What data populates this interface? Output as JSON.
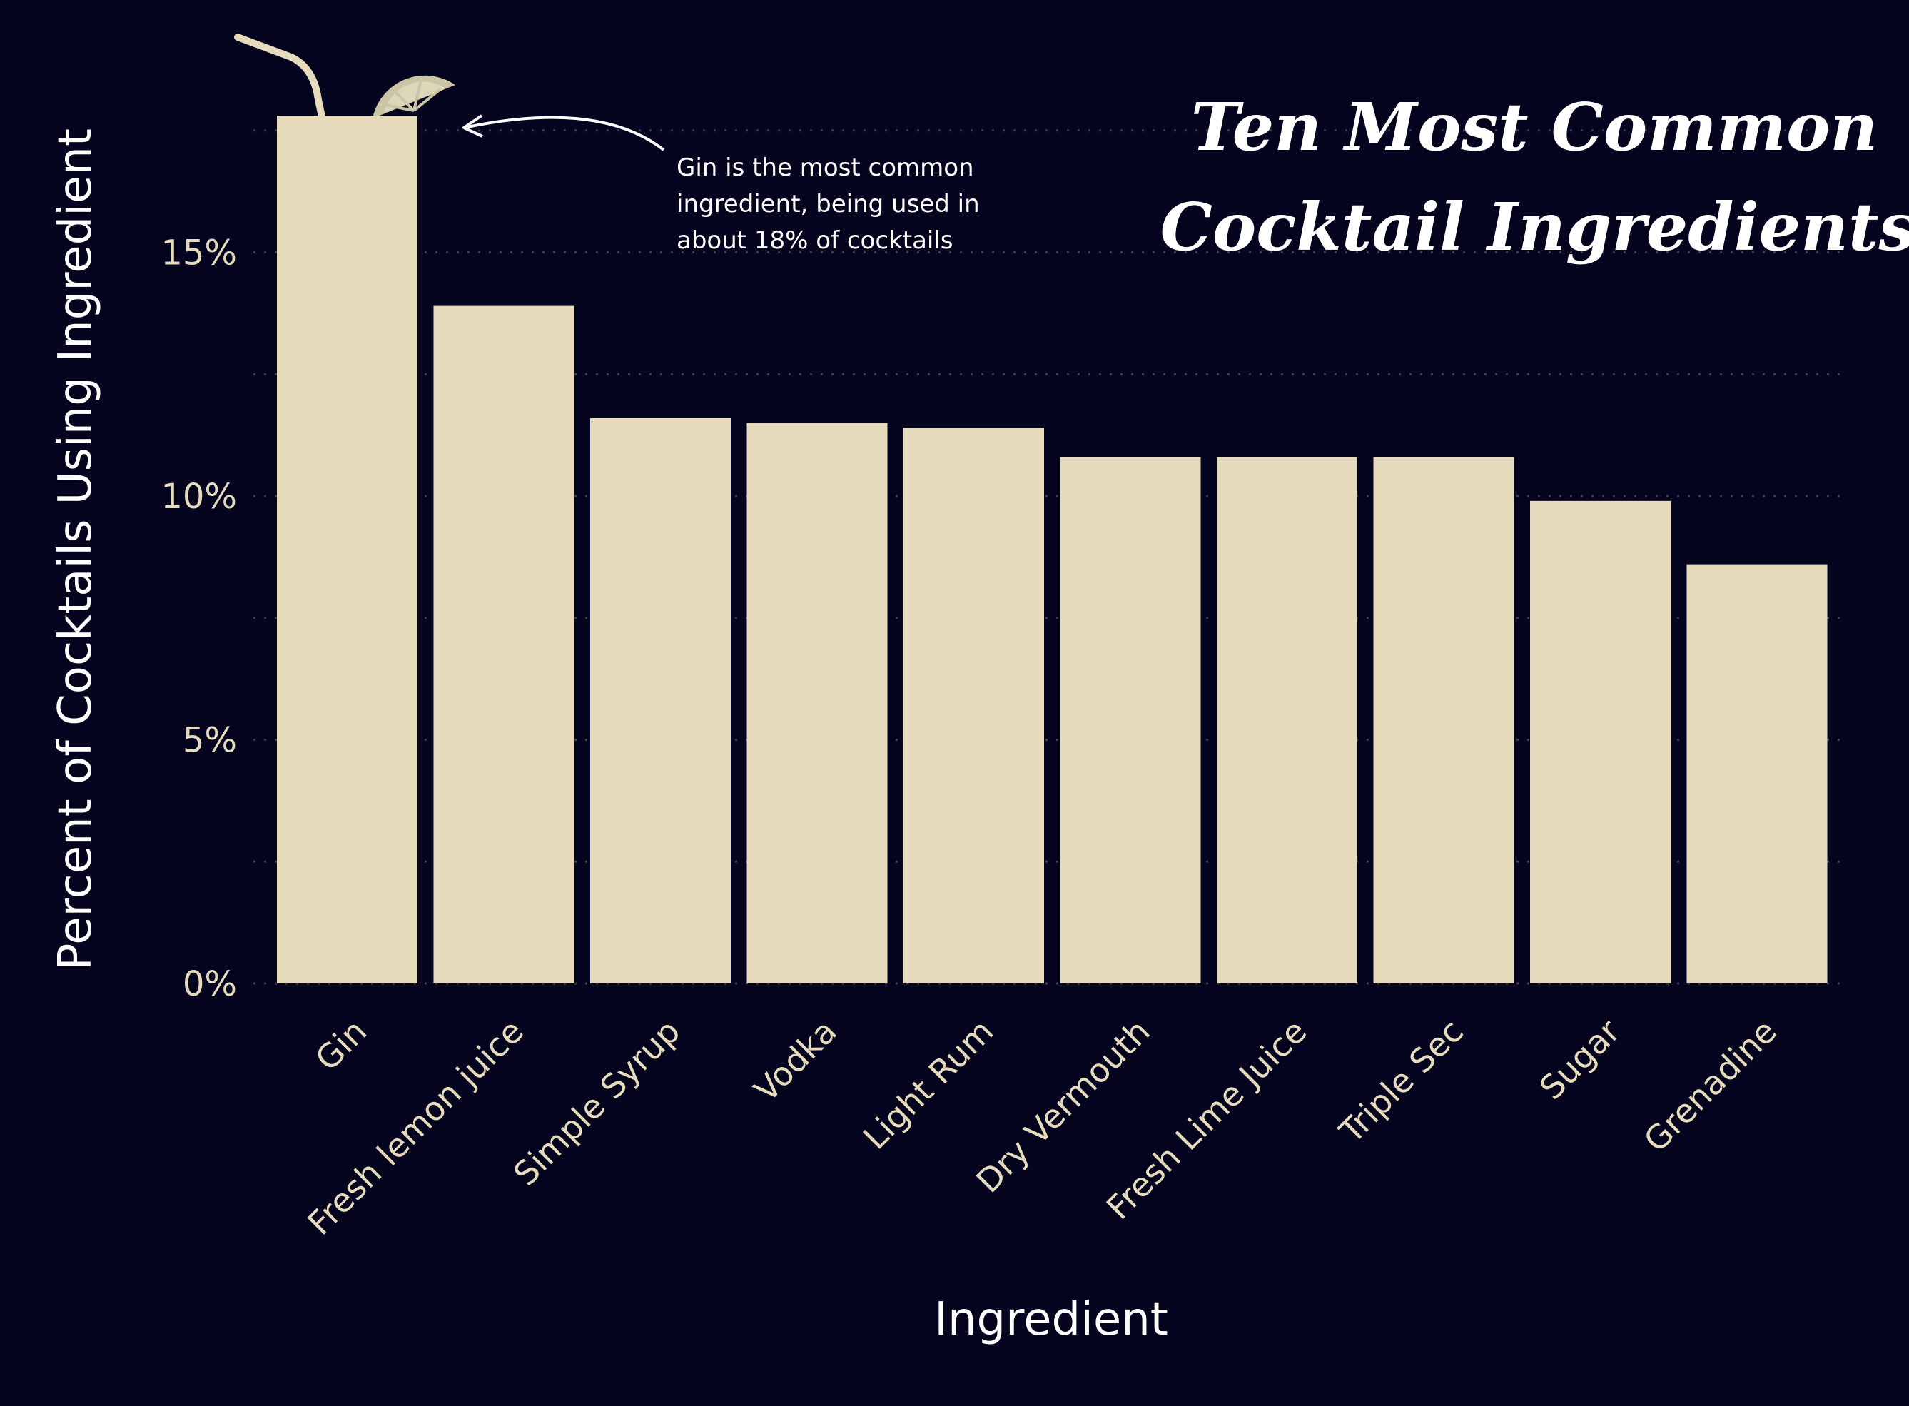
{
  "chart_data": {
    "type": "bar",
    "title": [
      "Ten Most Common",
      "Cocktail Ingredients"
    ],
    "xlabel": "Ingredient",
    "ylabel": "Percent of Cocktails Using Ingredient",
    "categories": [
      "Gin",
      "Fresh lemon juice",
      "Simple Syrup",
      "Vodka",
      "Light Rum",
      "Dry Vermouth",
      "Fresh Lime Juice",
      "Triple Sec",
      "Sugar",
      "Grenadine"
    ],
    "values": [
      17.8,
      13.9,
      11.6,
      11.5,
      11.4,
      10.8,
      10.8,
      10.8,
      9.9,
      8.6
    ],
    "ylim": [
      0,
      20
    ],
    "yticks": [
      0,
      5,
      10,
      15
    ],
    "ytick_labels": [
      "0%",
      "5%",
      "10%",
      "15%"
    ],
    "grid": true,
    "annotation": {
      "target": "Gin",
      "lines": [
        "Gin is the most common",
        "ingredient, being used in",
        "about 18% of cocktails"
      ]
    }
  },
  "colors": {
    "background": "#05051f",
    "bar": "#e6dcbd",
    "text": "#ffffff",
    "tick_text": "#e6dcbd",
    "gridline": "#3a3a55",
    "lime": "#cbc4a5"
  },
  "icons": {
    "straw": "straw-icon",
    "lime": "lime-wedge-icon"
  }
}
